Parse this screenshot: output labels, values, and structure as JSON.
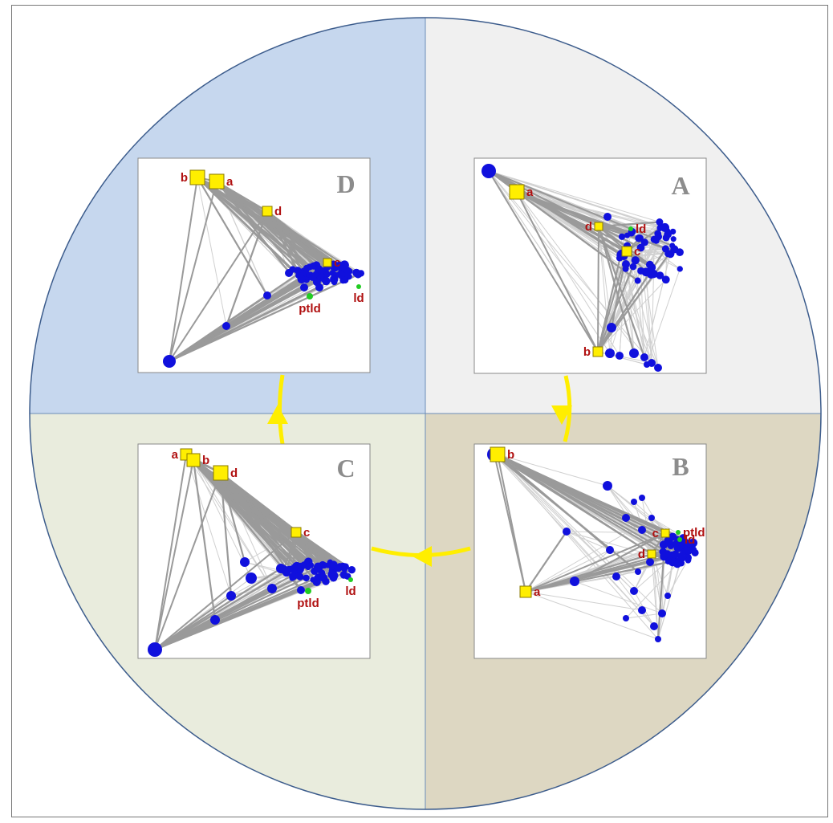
{
  "colors": {
    "quadrant_top_left": "#c6d7ee",
    "quadrant_top_right": "#f0f0f0",
    "quadrant_bottom_right": "#ddd7c2",
    "quadrant_bottom_left": "#e9ecdd",
    "circle_border": "#3c5c8c",
    "arrow": "#ffee00",
    "hub_node": "#1010dd",
    "marker_square": "#ffee00",
    "marker_green": "#22cc22",
    "edge_dark": "#9a9a9a",
    "edge_light": "#d0d0d0"
  },
  "panels": [
    {
      "id": "A",
      "label": "A",
      "nodes": [
        {
          "label": "a",
          "kind": "square"
        },
        {
          "label": "d",
          "kind": "square"
        },
        {
          "label": "c",
          "kind": "square"
        },
        {
          "label": "b",
          "kind": "square"
        },
        {
          "label": "ld",
          "kind": "green"
        }
      ]
    },
    {
      "id": "B",
      "label": "B",
      "nodes": [
        {
          "label": "b",
          "kind": "square"
        },
        {
          "label": "ptld",
          "kind": "green"
        },
        {
          "label": "c",
          "kind": "square"
        },
        {
          "label": "ld",
          "kind": "green"
        },
        {
          "label": "d",
          "kind": "square"
        },
        {
          "label": "a",
          "kind": "square"
        }
      ]
    },
    {
      "id": "C",
      "label": "C",
      "nodes": [
        {
          "label": "a",
          "kind": "square"
        },
        {
          "label": "b",
          "kind": "square"
        },
        {
          "label": "d",
          "kind": "square"
        },
        {
          "label": "c",
          "kind": "square"
        },
        {
          "label": "ptld",
          "kind": "green"
        },
        {
          "label": "ld",
          "kind": "green"
        }
      ]
    },
    {
      "id": "D",
      "label": "D",
      "nodes": [
        {
          "label": "b",
          "kind": "square"
        },
        {
          "label": "a",
          "kind": "square"
        },
        {
          "label": "d",
          "kind": "square"
        },
        {
          "label": "c",
          "kind": "square"
        },
        {
          "label": "ptld",
          "kind": "green"
        },
        {
          "label": "ld",
          "kind": "green"
        }
      ]
    }
  ]
}
